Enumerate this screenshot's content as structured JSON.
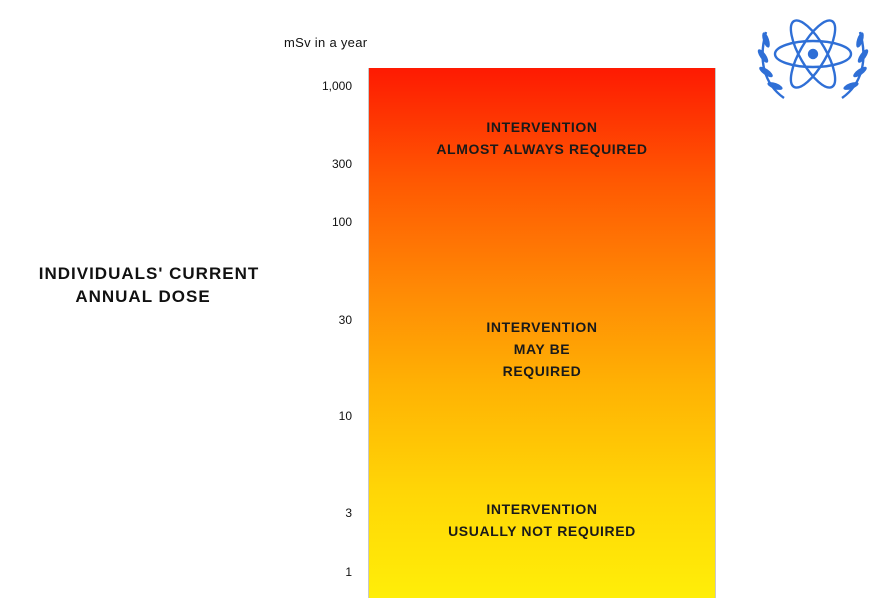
{
  "unit_label": "mSv in a year",
  "side_label": {
    "line1": "INDIVIDUALS' CURRENT",
    "line2": "ANNUAL DOSE"
  },
  "scale_ticks": [
    "1,000",
    "300",
    "100",
    "30",
    "10",
    "3",
    "1"
  ],
  "zones": {
    "high": {
      "line1": "INTERVENTION",
      "line2": "ALMOST ALWAYS REQUIRED"
    },
    "mid": {
      "line1": "INTERVENTION",
      "line2": "MAY BE",
      "line3": "REQUIRED"
    },
    "low": {
      "line1": "INTERVENTION",
      "line2": "USUALLY NOT REQUIRED"
    }
  },
  "colors": {
    "top": "#fe1a02",
    "bottom": "#ffee08",
    "emblem": "#2f6fd6"
  }
}
